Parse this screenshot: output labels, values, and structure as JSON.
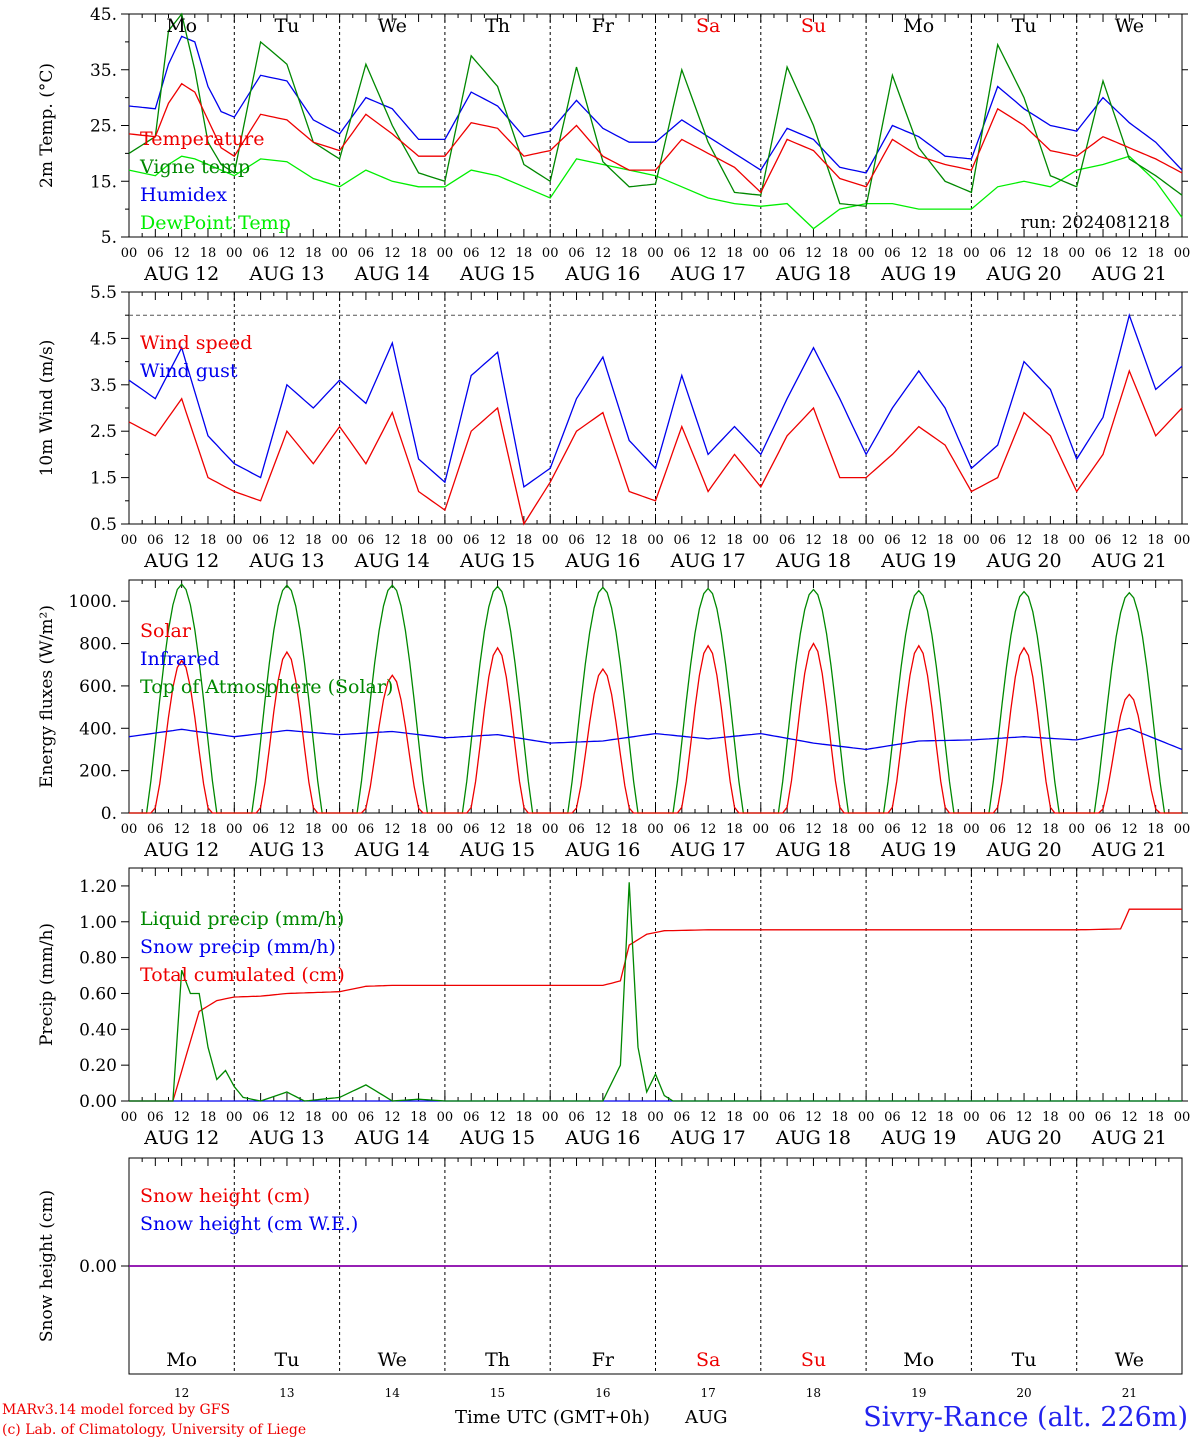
{
  "day_names": [
    "Mo",
    "Tu",
    "We",
    "Th",
    "Fr",
    "Sa",
    "Su",
    "Mo",
    "Tu",
    "We"
  ],
  "day_colors": [
    "#000000",
    "#000000",
    "#000000",
    "#000000",
    "#000000",
    "#ee0000",
    "#ee0000",
    "#000000",
    "#000000",
    "#000000"
  ],
  "date_labels": [
    "AUG 12",
    "AUG 13",
    "AUG 14",
    "AUG 15",
    "AUG 16",
    "AUG 17",
    "AUG 18",
    "AUG 19",
    "AUG 20",
    "AUG 21"
  ],
  "hour_ticks": [
    "00",
    "06",
    "12",
    "18"
  ],
  "final_hour_tick": "00",
  "bottom_day_numbers": [
    "12",
    "13",
    "14",
    "15",
    "16",
    "17",
    "18",
    "19",
    "20",
    "21"
  ],
  "footer": {
    "model_line": "MARv3.14 model forced by GFS",
    "lab_line": "(c) Lab. of Climatology, University of Liege",
    "xlabel": "Time UTC (GMT+0h)",
    "month": "AUG",
    "station": "Sivry-Rance (alt. 226m)"
  },
  "chart_data": [
    {
      "type": "line",
      "ylabel": "2m Temp. (°C)",
      "ylim": [
        5,
        45
      ],
      "yticks": [
        "5.",
        "15.",
        "25.",
        "35.",
        "45."
      ],
      "ytick_values": [
        5,
        15,
        25,
        35,
        45
      ],
      "run_label": "run: 2024081218",
      "x_unit": "hours since AUG 12 00 UTC",
      "series": [
        {
          "name": "Temperature",
          "color": "#ee0000",
          "x": [
            0,
            6,
            9,
            12,
            15,
            18,
            21,
            24,
            30,
            36,
            42,
            48,
            54,
            60,
            66,
            72,
            78,
            84,
            90,
            96,
            102,
            108,
            114,
            120,
            126,
            132,
            138,
            144,
            150,
            156,
            162,
            168,
            174,
            180,
            186,
            192,
            198,
            204,
            210,
            216,
            222,
            228,
            234,
            240
          ],
          "values": [
            23.5,
            23,
            29,
            32.5,
            31,
            26,
            21,
            19.5,
            27,
            26,
            22,
            20.5,
            27,
            23.5,
            19.5,
            19.5,
            25.5,
            24.5,
            19.5,
            20.5,
            25,
            19.5,
            17,
            17,
            22.5,
            20,
            17.5,
            13,
            22.5,
            20.5,
            15.5,
            14,
            22.5,
            19.5,
            18,
            17,
            28,
            25,
            20.5,
            19.5,
            23,
            21,
            19,
            16.5
          ]
        },
        {
          "name": "Vigne temp",
          "color": "#008800",
          "x": [
            0,
            6,
            9,
            12,
            15,
            18,
            21,
            24,
            30,
            36,
            42,
            48,
            54,
            60,
            66,
            72,
            78,
            84,
            90,
            96,
            102,
            108,
            114,
            120,
            126,
            132,
            138,
            144,
            150,
            156,
            162,
            168,
            174,
            180,
            186,
            192,
            198,
            204,
            210,
            216,
            222,
            228,
            234,
            240
          ],
          "values": [
            20,
            23,
            42,
            45,
            35,
            22,
            18,
            16.5,
            40,
            36,
            22,
            19,
            36,
            25,
            16.5,
            15,
            37.5,
            32,
            18,
            15,
            35.5,
            18.5,
            14,
            14.5,
            35,
            22,
            13,
            12.5,
            35.5,
            25,
            11,
            10.5,
            34,
            21,
            15,
            13,
            39.5,
            30,
            16,
            14,
            33,
            19,
            16,
            12.5
          ]
        },
        {
          "name": "Humidex",
          "color": "#0000ee",
          "x": [
            0,
            6,
            9,
            12,
            15,
            18,
            21,
            24,
            30,
            36,
            42,
            48,
            54,
            60,
            66,
            72,
            78,
            84,
            90,
            96,
            102,
            108,
            114,
            120,
            126,
            132,
            138,
            144,
            150,
            156,
            162,
            168,
            174,
            180,
            186,
            192,
            198,
            204,
            210,
            216,
            222,
            228,
            234,
            240
          ],
          "values": [
            28.5,
            28,
            36,
            41,
            40,
            32,
            27.5,
            26.5,
            34,
            33,
            26,
            23.5,
            30,
            28,
            22.5,
            22.5,
            31,
            28.5,
            23,
            24,
            29.5,
            24.5,
            22,
            22,
            26,
            23,
            20,
            17,
            24.5,
            22.5,
            17.5,
            16.5,
            25,
            23,
            19.5,
            19,
            32,
            28,
            25,
            24,
            30,
            25.5,
            22,
            17
          ]
        },
        {
          "name": "DewPoint Temp",
          "color": "#00ee00",
          "x": [
            0,
            6,
            9,
            12,
            15,
            18,
            21,
            24,
            30,
            36,
            42,
            48,
            54,
            60,
            66,
            72,
            78,
            84,
            90,
            96,
            102,
            108,
            114,
            120,
            126,
            132,
            138,
            144,
            150,
            156,
            162,
            168,
            174,
            180,
            186,
            192,
            198,
            204,
            210,
            216,
            222,
            228,
            234,
            240
          ],
          "values": [
            17,
            16,
            18,
            19.5,
            19,
            18,
            17,
            16,
            19,
            18.5,
            15.5,
            14,
            17,
            15,
            14,
            14,
            17,
            16,
            14,
            12,
            19,
            18,
            17,
            16,
            14,
            12,
            11,
            10.5,
            11,
            6.5,
            10,
            11,
            11,
            10,
            10,
            10,
            14,
            15,
            14,
            17,
            18,
            19.5,
            15,
            8.5
          ]
        }
      ]
    },
    {
      "type": "line",
      "ylabel": "10m Wind (m/s)",
      "ylim": [
        0.5,
        5.5
      ],
      "yticks": [
        "0.5",
        "1.5",
        "2.5",
        "3.5",
        "4.5",
        "5.5"
      ],
      "ytick_values": [
        0.5,
        1.5,
        2.5,
        3.5,
        4.5,
        5.5
      ],
      "reference_line": 5.0,
      "x_unit": "hours since AUG 12 00 UTC",
      "series": [
        {
          "name": "Wind speed",
          "color": "#ee0000",
          "x": [
            0,
            6,
            12,
            18,
            24,
            30,
            36,
            42,
            48,
            54,
            60,
            66,
            72,
            78,
            84,
            90,
            96,
            102,
            108,
            114,
            120,
            126,
            132,
            138,
            144,
            150,
            156,
            162,
            168,
            174,
            180,
            186,
            192,
            198,
            204,
            210,
            216,
            222,
            228,
            234,
            240
          ],
          "values": [
            2.7,
            2.4,
            3.2,
            1.5,
            1.2,
            1.0,
            2.5,
            1.8,
            2.6,
            1.8,
            2.9,
            1.2,
            0.8,
            2.5,
            3.0,
            0.5,
            1.4,
            2.5,
            2.9,
            1.2,
            1.0,
            2.6,
            1.2,
            2.0,
            1.3,
            2.4,
            3.0,
            1.5,
            1.5,
            2.0,
            2.6,
            2.2,
            1.2,
            1.5,
            2.9,
            2.4,
            1.2,
            2.0,
            3.8,
            2.4,
            3.0
          ]
        },
        {
          "name": "Wind gust",
          "color": "#0000ee",
          "x": [
            0,
            6,
            12,
            18,
            24,
            30,
            36,
            42,
            48,
            54,
            60,
            66,
            72,
            78,
            84,
            90,
            96,
            102,
            108,
            114,
            120,
            126,
            132,
            138,
            144,
            150,
            156,
            162,
            168,
            174,
            180,
            186,
            192,
            198,
            204,
            210,
            216,
            222,
            228,
            234,
            240
          ],
          "values": [
            3.6,
            3.2,
            4.3,
            2.4,
            1.8,
            1.5,
            3.5,
            3.0,
            3.6,
            3.1,
            4.4,
            1.9,
            1.4,
            3.7,
            4.2,
            1.3,
            1.7,
            3.2,
            4.1,
            2.3,
            1.7,
            3.7,
            2.0,
            2.6,
            2.0,
            3.2,
            4.3,
            3.2,
            2.0,
            3.0,
            3.8,
            3.0,
            1.7,
            2.2,
            4.0,
            3.4,
            1.9,
            2.8,
            5.0,
            3.4,
            3.9
          ]
        }
      ]
    },
    {
      "type": "line",
      "ylabel": "Energy fluxes (W/m²)",
      "ylim": [
        0,
        1100
      ],
      "yticks": [
        "0.",
        "200.",
        "400.",
        "600.",
        "800.",
        "1000."
      ],
      "ytick_values": [
        0,
        200,
        400,
        600,
        800,
        1000
      ],
      "x_unit": "hours since AUG 12 00 UTC",
      "series": [
        {
          "name": "Solar",
          "color": "#ee0000",
          "daily_peak": [
            720,
            760,
            650,
            780,
            680,
            790,
            800,
            790,
            780,
            560
          ]
        },
        {
          "name": "Infrared",
          "color": "#0000ee",
          "x": [
            0,
            12,
            24,
            36,
            48,
            60,
            72,
            84,
            96,
            108,
            120,
            132,
            144,
            156,
            168,
            180,
            192,
            204,
            216,
            228,
            240
          ],
          "values": [
            360,
            395,
            360,
            390,
            370,
            385,
            355,
            370,
            330,
            340,
            375,
            350,
            375,
            330,
            300,
            340,
            345,
            360,
            345,
            400,
            300
          ]
        },
        {
          "name": "Top of Atmosphere (Solar)",
          "color": "#008800",
          "daily_peak": [
            1080,
            1075,
            1075,
            1070,
            1065,
            1060,
            1055,
            1050,
            1045,
            1040
          ]
        }
      ]
    },
    {
      "type": "line",
      "ylabel": "Precip (mm/h)",
      "ylim": [
        0,
        1.3
      ],
      "yticks": [
        "0.00",
        "0.20",
        "0.40",
        "0.60",
        "0.80",
        "1.00",
        "1.20"
      ],
      "ytick_values": [
        0,
        0.2,
        0.4,
        0.6,
        0.8,
        1.0,
        1.2
      ],
      "x_unit": "hours since AUG 12 00 UTC",
      "series": [
        {
          "name": "Liquid precip (mm/h)",
          "color": "#008800",
          "x": [
            0,
            10,
            12,
            14,
            16,
            18,
            20,
            22,
            24,
            26,
            30,
            36,
            40,
            48,
            54,
            56,
            60,
            66,
            72,
            108,
            112,
            114,
            116,
            118,
            120,
            122,
            124,
            240
          ],
          "values": [
            0,
            0,
            0.73,
            0.6,
            0.6,
            0.3,
            0.12,
            0.17,
            0.08,
            0.02,
            0,
            0.05,
            0,
            0.02,
            0.09,
            0.06,
            0,
            0.01,
            0,
            0,
            0.2,
            1.22,
            0.3,
            0.05,
            0.15,
            0.03,
            0,
            0
          ]
        },
        {
          "name": "Snow precip (mm/h)",
          "color": "#0000ee",
          "x": [
            0,
            240
          ],
          "values": [
            0,
            0
          ]
        },
        {
          "name": "Total cumulated (cm)",
          "color": "#ee0000",
          "x": [
            0,
            10,
            16,
            20,
            24,
            30,
            36,
            48,
            54,
            60,
            72,
            108,
            112,
            114,
            118,
            122,
            132,
            144,
            168,
            192,
            216,
            226,
            228,
            240
          ],
          "values": [
            0,
            0,
            0.5,
            0.56,
            0.58,
            0.585,
            0.6,
            0.61,
            0.64,
            0.645,
            0.645,
            0.645,
            0.67,
            0.87,
            0.93,
            0.95,
            0.955,
            0.955,
            0.955,
            0.955,
            0.955,
            0.96,
            1.07,
            1.07
          ]
        }
      ]
    },
    {
      "type": "line",
      "ylabel": "Snow height (cm)",
      "ylim": [
        -1,
        1
      ],
      "yticks": [
        "0.00"
      ],
      "ytick_values": [
        0
      ],
      "x_unit": "hours since AUG 12 00 UTC",
      "series": [
        {
          "name": "Snow height (cm)",
          "color": "#ee0000",
          "x": [
            0,
            240
          ],
          "values": [
            0,
            0
          ]
        },
        {
          "name": "Snow height (cm W.E.)",
          "color": "#0000ee",
          "x": [
            0,
            240
          ],
          "values": [
            0,
            0
          ]
        }
      ]
    }
  ]
}
